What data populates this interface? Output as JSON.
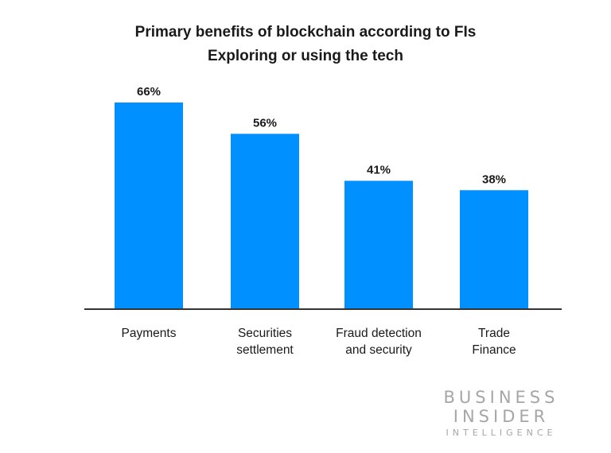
{
  "chart_data": {
    "type": "bar",
    "title": "Primary benefits of blockchain according to FIs",
    "subtitle": "Exploring or using the tech",
    "categories": [
      [
        "Payments"
      ],
      [
        "Securities",
        "settlement"
      ],
      [
        "Fraud detection",
        "and security"
      ],
      [
        "Trade",
        "Finance"
      ]
    ],
    "values": [
      66,
      56,
      41,
      38
    ],
    "data_labels": [
      "66%",
      "56%",
      "41%",
      "38%"
    ],
    "ylim": [
      0,
      70
    ],
    "grid": false,
    "bar_color": "#0090ff",
    "axis_color": "#333333"
  },
  "logo": {
    "line1": "BUSINESS",
    "line2": "INSIDER",
    "line3": "INTELLIGENCE"
  }
}
